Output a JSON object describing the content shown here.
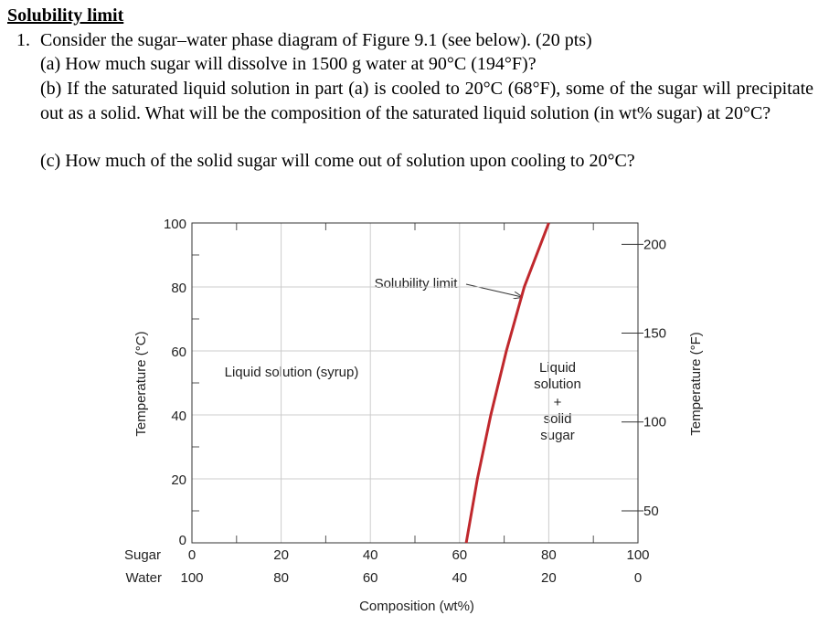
{
  "header": {
    "title": "Solubility limit"
  },
  "question": {
    "number": "1.",
    "text": "Consider the sugar–water phase diagram of Figure 9.1 (see below). (20 pts)",
    "parts": [
      "(a) How much sugar will dissolve in 1500 g water at 90°C (194°F)?",
      "(b) If the saturated liquid solution in part (a) is cooled to 20°C (68°F), some of the sugar will precipitate out as a solid.  What will be the composition of the saturated liquid solution (in wt% sugar) at 20°C?",
      "(c) How much of the solid sugar will come out of solution upon cooling to 20°C?"
    ]
  },
  "chart_data": {
    "type": "line",
    "x": [
      61.5,
      64,
      67,
      70.5,
      74.5,
      80
    ],
    "series": [
      {
        "color": "#c0282d",
        "values": [
          0,
          20,
          40,
          60,
          80,
          100
        ]
      }
    ],
    "annotation": "Solubility limit",
    "region_labels": [
      [
        "Liquid solution (syrup)"
      ],
      [
        "Liquid",
        "solution",
        "+",
        "solid",
        "sugar"
      ]
    ],
    "xlim": [
      0,
      100
    ],
    "xticks": [
      0,
      20,
      40,
      60,
      80,
      100
    ],
    "xminorticks": [
      10,
      30,
      50,
      70,
      90
    ],
    "x2lim": [
      100,
      0
    ],
    "x2ticks": [
      100,
      80,
      60,
      40,
      20,
      0
    ],
    "x_row_labels": [
      "Sugar",
      "Water"
    ],
    "ylim": [
      0,
      100
    ],
    "yticks": [
      0,
      20,
      40,
      60,
      80,
      100
    ],
    "yminorticks": [
      10,
      30,
      50,
      70,
      90
    ],
    "y2lim": [
      32,
      212
    ],
    "y2ticks": [
      50,
      100,
      150,
      200
    ],
    "xlabel": "Composition (wt%)",
    "ylabel": "Temperature (°C)",
    "y2label": "Temperature (°F)",
    "grid": true
  }
}
